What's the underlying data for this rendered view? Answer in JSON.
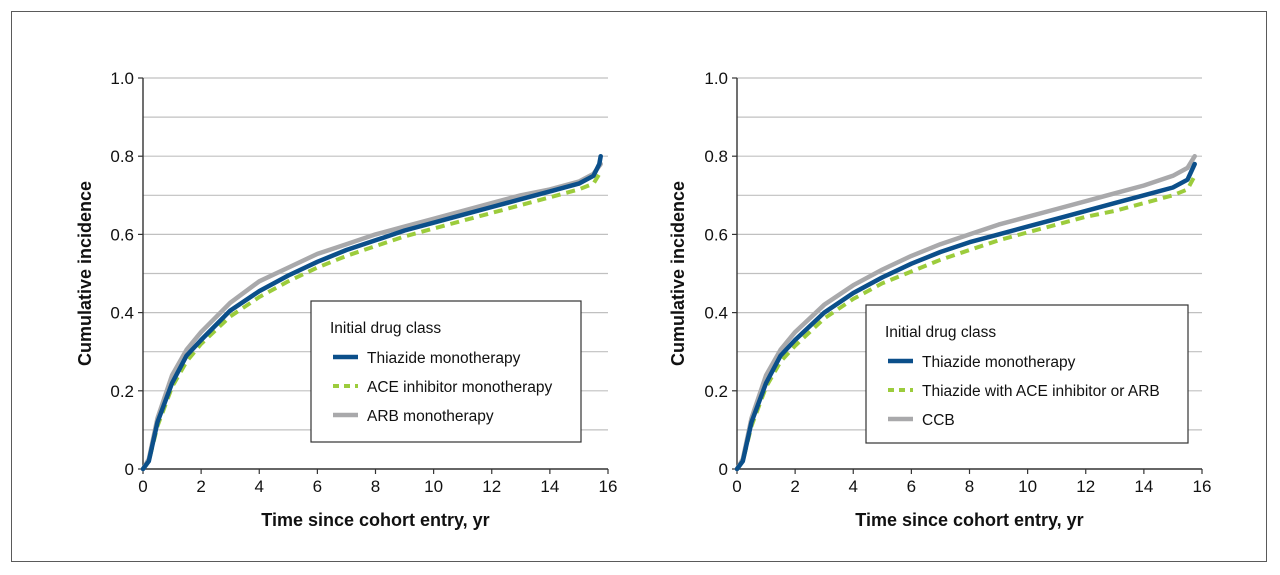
{
  "colors": {
    "thiazide": "#0b4f8a",
    "combo": "#9ccc3c",
    "gray": "#a9a9ab",
    "grid": "#c0c0c0"
  },
  "chart_data": [
    {
      "type": "line",
      "xlabel": "Time since cohort entry, yr",
      "ylabel": "Cumulative incidence",
      "xlim": [
        0,
        16
      ],
      "ylim": [
        0,
        1.0
      ],
      "xticks": [
        "0",
        "2",
        "4",
        "6",
        "8",
        "10",
        "12",
        "14",
        "16"
      ],
      "yticks": [
        "0",
        "0.2",
        "0.4",
        "0.6",
        "0.8",
        "1.0"
      ],
      "grid_y": [
        0.1,
        0.2,
        0.3,
        0.4,
        0.5,
        0.6,
        0.7,
        0.8,
        0.9,
        1.0
      ],
      "legend": {
        "title": "Initial drug class",
        "placement": "center-right"
      },
      "series": [
        {
          "name": "Thiazide monotherapy",
          "color": "#0b4f8a",
          "dash": "solid",
          "x": [
            0,
            0.2,
            0.5,
            1,
            1.5,
            2,
            3,
            4,
            5,
            6,
            7,
            8,
            9,
            10,
            11,
            12,
            13,
            14,
            15,
            15.5,
            15.7,
            15.75
          ],
          "y": [
            0,
            0.02,
            0.12,
            0.22,
            0.29,
            0.33,
            0.405,
            0.455,
            0.495,
            0.53,
            0.56,
            0.585,
            0.61,
            0.63,
            0.65,
            0.67,
            0.69,
            0.71,
            0.73,
            0.75,
            0.78,
            0.8
          ]
        },
        {
          "name": "ACE inhibitor monotherapy",
          "color": "#9ccc3c",
          "dash": "dashed",
          "x": [
            0,
            0.2,
            0.5,
            1,
            1.5,
            2,
            3,
            4,
            5,
            6,
            7,
            8,
            9,
            10,
            11,
            12,
            13,
            14,
            15,
            15.5,
            15.75
          ],
          "y": [
            0,
            0.02,
            0.11,
            0.21,
            0.275,
            0.32,
            0.39,
            0.44,
            0.48,
            0.515,
            0.545,
            0.57,
            0.595,
            0.615,
            0.635,
            0.655,
            0.675,
            0.695,
            0.715,
            0.73,
            0.76
          ]
        },
        {
          "name": "ARB monotherapy",
          "color": "#a9a9ab",
          "dash": "solid",
          "x": [
            0,
            0.2,
            0.5,
            1,
            1.5,
            2,
            3,
            4,
            5,
            6,
            7,
            8,
            9,
            10,
            11,
            12,
            13,
            14,
            15,
            15.5,
            15.75
          ],
          "y": [
            0,
            0.025,
            0.13,
            0.24,
            0.305,
            0.35,
            0.425,
            0.48,
            0.515,
            0.55,
            0.575,
            0.6,
            0.62,
            0.64,
            0.66,
            0.68,
            0.7,
            0.715,
            0.735,
            0.755,
            0.78
          ]
        }
      ]
    },
    {
      "type": "line",
      "xlabel": "Time since cohort entry, yr",
      "ylabel": "Cumulative incidence",
      "xlim": [
        0,
        16
      ],
      "ylim": [
        0,
        1.0
      ],
      "xticks": [
        "0",
        "2",
        "4",
        "6",
        "8",
        "10",
        "12",
        "14",
        "16"
      ],
      "yticks": [
        "0",
        "0.2",
        "0.4",
        "0.6",
        "0.8",
        "1.0"
      ],
      "grid_y": [
        0.1,
        0.2,
        0.3,
        0.4,
        0.5,
        0.6,
        0.7,
        0.8,
        0.9,
        1.0
      ],
      "legend": {
        "title": "Initial drug class",
        "placement": "center-right"
      },
      "series": [
        {
          "name": "Thiazide monotherapy",
          "color": "#0b4f8a",
          "dash": "solid",
          "x": [
            0,
            0.2,
            0.5,
            1,
            1.5,
            2,
            3,
            4,
            5,
            6,
            7,
            8,
            9,
            10,
            11,
            12,
            13,
            14,
            15,
            15.5,
            15.75
          ],
          "y": [
            0,
            0.02,
            0.12,
            0.22,
            0.29,
            0.33,
            0.4,
            0.45,
            0.49,
            0.525,
            0.555,
            0.58,
            0.6,
            0.62,
            0.64,
            0.66,
            0.68,
            0.7,
            0.72,
            0.74,
            0.78
          ]
        },
        {
          "name": "Thiazide with ACE inhibitor or ARB",
          "color": "#9ccc3c",
          "dash": "dashed",
          "x": [
            0,
            0.2,
            0.5,
            1,
            1.5,
            2,
            3,
            4,
            5,
            6,
            7,
            8,
            9,
            10,
            11,
            12,
            13,
            14,
            15,
            15.5,
            15.75
          ],
          "y": [
            0,
            0.02,
            0.11,
            0.21,
            0.275,
            0.315,
            0.385,
            0.435,
            0.475,
            0.505,
            0.535,
            0.56,
            0.585,
            0.605,
            0.625,
            0.645,
            0.66,
            0.68,
            0.7,
            0.715,
            0.75
          ]
        },
        {
          "name": "CCB",
          "color": "#a9a9ab",
          "dash": "solid",
          "x": [
            0,
            0.2,
            0.5,
            1,
            1.5,
            2,
            3,
            4,
            5,
            6,
            7,
            8,
            9,
            10,
            11,
            12,
            13,
            14,
            15,
            15.5,
            15.75
          ],
          "y": [
            0,
            0.025,
            0.13,
            0.24,
            0.305,
            0.35,
            0.42,
            0.47,
            0.51,
            0.545,
            0.575,
            0.6,
            0.625,
            0.645,
            0.665,
            0.685,
            0.705,
            0.725,
            0.75,
            0.77,
            0.8
          ]
        }
      ]
    }
  ]
}
